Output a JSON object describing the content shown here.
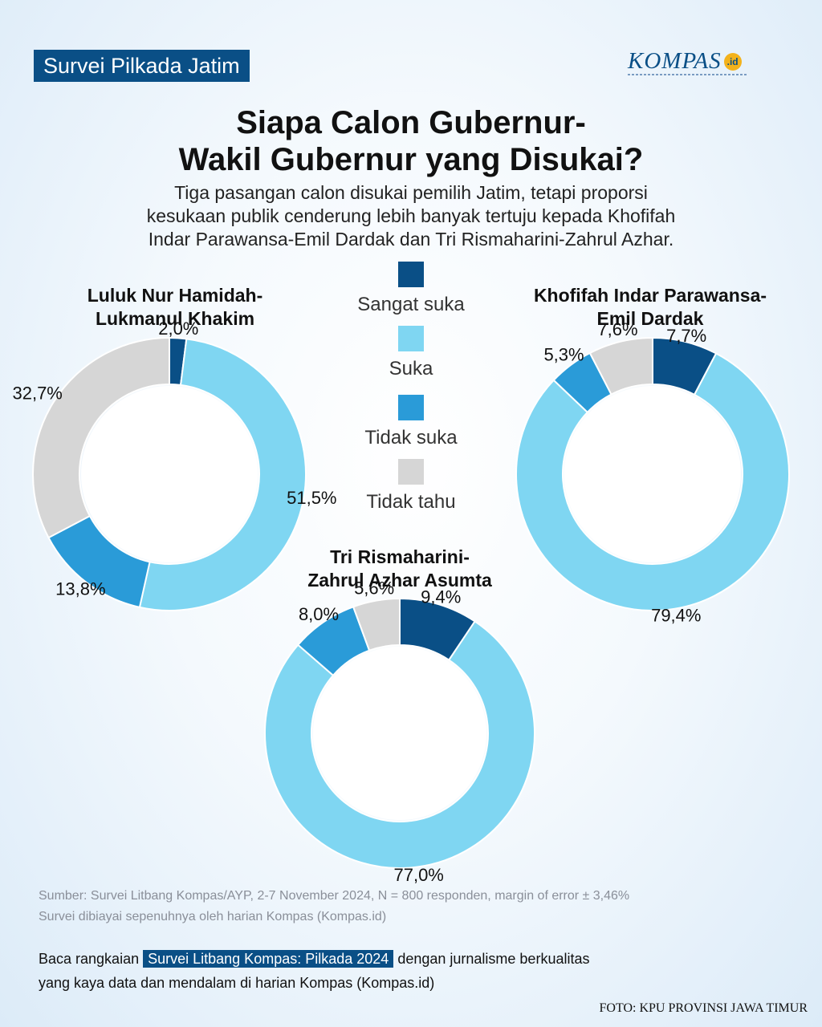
{
  "header": {
    "tag": "Survei Pilkada Jatim",
    "logo_text": "KOMPAS",
    "logo_suffix": ".id",
    "title_line1": "Siapa Calon Gubernur-",
    "title_line2": "Wakil Gubernur yang Disukai?",
    "subtitle_line1": "Tiga pasangan calon disukai pemilih Jatim, tetapi proporsi",
    "subtitle_line2": "kesukaan publik cenderung lebih banyak tertuju kepada Khofifah",
    "subtitle_line3": "Indar Parawansa-Emil Dardak dan Tri Rismaharini-Zahrul Azhar."
  },
  "colors": {
    "sangat_suka": "#0a4f86",
    "suka": "#7fd6f2",
    "tidak_suka": "#2a9bd8",
    "tidak_tahu": "#d6d6d6",
    "accent": "#0a4f86"
  },
  "chart_data": [
    {
      "type": "pie",
      "name_line1": "Luluk Nur Hamidah-",
      "name_line2": "Lukmanul Khakim",
      "categories": [
        "Sangat suka",
        "Suka",
        "Tidak suka",
        "Tidak tahu"
      ],
      "values": [
        2.0,
        51.5,
        13.8,
        32.7
      ],
      "labels": [
        "2,0%",
        "51,5%",
        "13,8%",
        "32,7%"
      ]
    },
    {
      "type": "pie",
      "name_line1": "Khofifah Indar Parawansa-",
      "name_line2": "Emil Dardak",
      "categories": [
        "Sangat suka",
        "Suka",
        "Tidak suka",
        "Tidak tahu"
      ],
      "values": [
        7.7,
        79.4,
        5.3,
        7.6
      ],
      "labels": [
        "7,7%",
        "79,4%",
        "5,3%",
        "7,6%"
      ]
    },
    {
      "type": "pie",
      "name_line1": "Tri Rismaharini-",
      "name_line2": "Zahrul Azhar Asumta",
      "categories": [
        "Sangat suka",
        "Suka",
        "Tidak suka",
        "Tidak tahu"
      ],
      "values": [
        9.4,
        77.0,
        8.0,
        5.6
      ],
      "labels": [
        "9,4%",
        "77,0%",
        "8,0%",
        "5,6%"
      ]
    }
  ],
  "legend": [
    "Sangat suka",
    "Suka",
    "Tidak suka",
    "Tidak tahu"
  ],
  "footer": {
    "source_line1": "Sumber: Survei Litbang Kompas/AYP, 2-7 November 2024, N = 800  responden, margin of error ± 3,46%",
    "source_line2": "Survei dibiayai sepenuhnya oleh harian Kompas (Kompas.id)",
    "cta_before": "Baca rangkaian",
    "cta_highlight": "Survei Litbang Kompas: Pilkada 2024",
    "cta_after": "dengan jurnalisme berkualitas",
    "cta_line2": "yang kaya data dan mendalam di harian Kompas (Kompas.id)",
    "photo_credit": "FOTO: KPU PROVINSI JAWA TIMUR"
  }
}
